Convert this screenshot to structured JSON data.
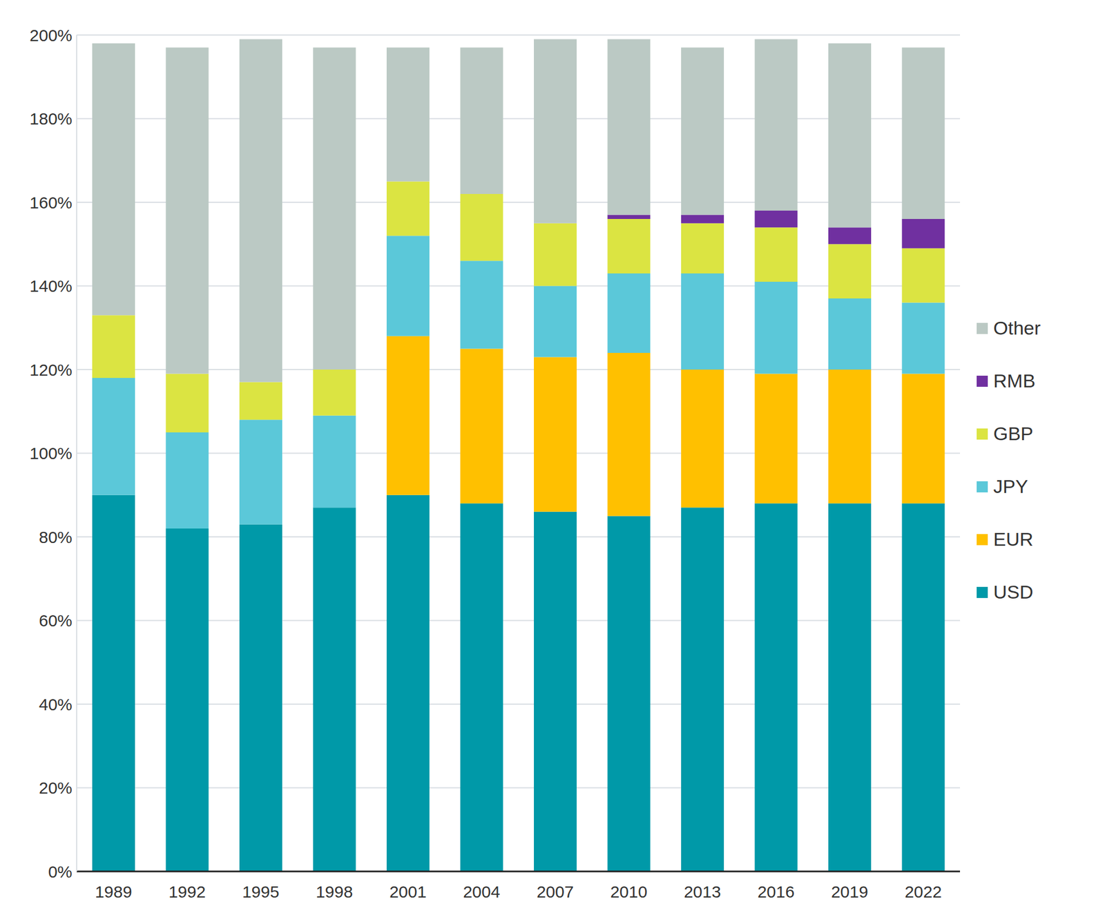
{
  "chart_data": {
    "type": "bar",
    "stacked": true,
    "grid": true,
    "legend": "right",
    "categories": [
      "1989",
      "1992",
      "1995",
      "1998",
      "2001",
      "2004",
      "2007",
      "2010",
      "2013",
      "2016",
      "2019",
      "2022"
    ],
    "series": [
      {
        "name": "USD",
        "color": "#0099a8",
        "values": [
          90,
          82,
          83,
          87,
          90,
          88,
          86,
          85,
          87,
          88,
          88,
          88
        ]
      },
      {
        "name": "EUR",
        "color": "#ffc000",
        "values": [
          0,
          0,
          0,
          0,
          38,
          37,
          37,
          39,
          33,
          31,
          32,
          31
        ]
      },
      {
        "name": "JPY",
        "color": "#5bc8d9",
        "values": [
          28,
          23,
          25,
          22,
          24,
          21,
          17,
          19,
          23,
          22,
          17,
          17
        ]
      },
      {
        "name": "GBP",
        "color": "#dbe442",
        "values": [
          15,
          14,
          9,
          11,
          13,
          16,
          15,
          13,
          12,
          13,
          13,
          13
        ]
      },
      {
        "name": "RMB",
        "color": "#7030a0",
        "values": [
          0,
          0,
          0,
          0,
          0,
          0,
          0,
          1,
          2,
          4,
          4,
          7
        ]
      },
      {
        "name": "Other",
        "color": "#bbc9c4",
        "values": [
          65,
          78,
          82,
          77,
          32,
          35,
          44,
          42,
          40,
          41,
          44,
          41
        ]
      }
    ],
    "ylim": [
      0,
      200
    ],
    "yticks": [
      {
        "value": 0,
        "label": "0%"
      },
      {
        "value": 20,
        "label": "20%"
      },
      {
        "value": 40,
        "label": "40%"
      },
      {
        "value": 60,
        "label": "60%"
      },
      {
        "value": 80,
        "label": "80%"
      },
      {
        "value": 100,
        "label": "100%"
      },
      {
        "value": 120,
        "label": "120%"
      },
      {
        "value": 140,
        "label": "140%"
      },
      {
        "value": 160,
        "label": "160%"
      },
      {
        "value": 180,
        "label": "180%"
      },
      {
        "value": 200,
        "label": "200%"
      }
    ]
  }
}
